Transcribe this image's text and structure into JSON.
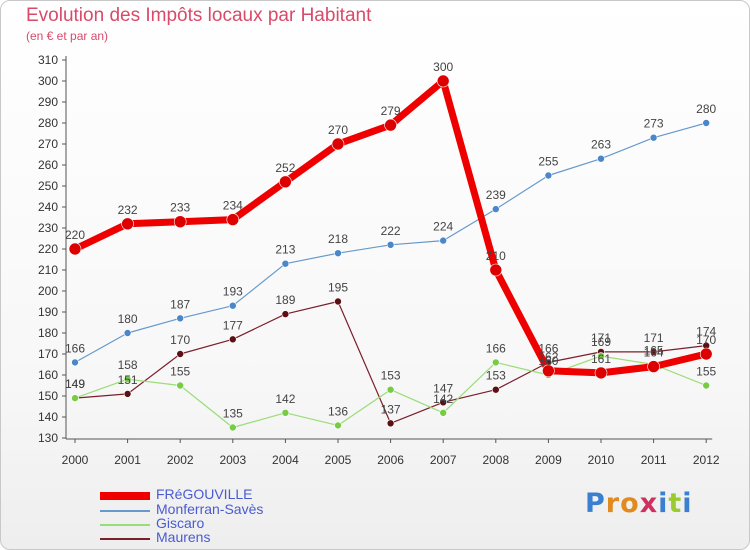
{
  "title": "Evolution des Impôts locaux par Habitant",
  "subtitle": "(en € et par an)",
  "logo": "Proxiti",
  "chart_data": {
    "type": "line",
    "title": "Evolution des Impôts locaux par Habitant",
    "subtitle": "(en € et par an)",
    "xlabel": "",
    "ylabel": "",
    "ylim": [
      130,
      310
    ],
    "yticks": [
      130,
      140,
      150,
      160,
      170,
      180,
      190,
      200,
      210,
      220,
      230,
      240,
      250,
      260,
      270,
      280,
      290,
      300,
      310
    ],
    "x": [
      "2000",
      "2001",
      "2002",
      "2003",
      "2004",
      "2005",
      "2006",
      "2007",
      "2008",
      "2009",
      "2010",
      "2011",
      "2012"
    ],
    "series": [
      {
        "name": "Maurens",
        "color": "#7a1f2b",
        "marker": "#5a1015",
        "width": 1.2,
        "r": 3.5,
        "values": [
          149,
          151,
          170,
          177,
          189,
          195,
          137,
          147,
          153,
          166,
          171,
          171,
          174
        ]
      },
      {
        "name": "Giscaro",
        "color": "#99dd77",
        "marker": "#77cc44",
        "width": 1.2,
        "r": 3.5,
        "values": [
          149,
          158,
          155,
          135,
          142,
          136,
          153,
          142,
          166,
          160,
          169,
          165,
          155
        ]
      },
      {
        "name": "Monferran-Savès",
        "color": "#6699cc",
        "marker": "#4a86c8",
        "width": 1.2,
        "r": 3.5,
        "values": [
          166,
          180,
          187,
          193,
          213,
          218,
          222,
          224,
          239,
          255,
          263,
          273,
          280
        ]
      },
      {
        "name": "FRéGOUVILLE",
        "color": "#ee0000",
        "marker": "#dd0000",
        "width": 7,
        "r": 6,
        "values": [
          220,
          232,
          233,
          234,
          252,
          270,
          279,
          300,
          210,
          162,
          161,
          164,
          170
        ]
      }
    ],
    "legend_order": [
      "FRéGOUVILLE",
      "Monferran-Savès",
      "Giscaro",
      "Maurens"
    ],
    "legend": "bottom-left",
    "grid": false
  }
}
